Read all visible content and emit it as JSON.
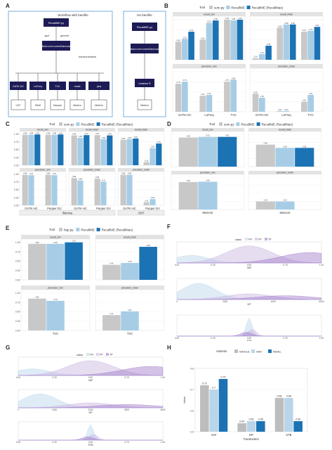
{
  "colors": {
    "som": "#c8c8c8",
    "recallme": "#a7cde6",
    "recallmax": "#1b73b4",
    "violet": "#a27bc9",
    "lightblue": "#b9d5ea",
    "navy": "#1d1b55",
    "strip": "#e3e3e3"
  },
  "panels": {
    "A": {
      "label": "A",
      "left_box": "Workflow with bamfile",
      "right_box": "No bamfile",
      "nodes": {
        "recallme": "RecallME.py",
        "bam2ref": "bcftools norm convert2annovar.pl",
        "harmonization": "harmonization",
        "gatk": "GATK-HC",
        "lofreq": "LoFreq",
        "tvc": "TVC",
        "reads": "reads",
        "plus": "plus",
        "recallme2": "RecallME.py",
        "bcftools2": "bcftools norm convert2annovar.pl",
        "recallmef": "recallme R",
        "metrics": "Metrics",
        "vcf": "VCF",
        "bam": "BAM",
        "sample": "Sample"
      },
      "edges": {
        "gvcf": "gvcf",
        "genovcf": "genovcf"
      }
    },
    "B": {
      "label": "B",
      "legend_title": "Tool",
      "legend": [
        "som.py",
        "RecallME",
        "RecallME (RecallMax)"
      ]
    },
    "C": {
      "label": "C",
      "legend_title": "Tool",
      "legend": [
        "som.py",
        "RecallME",
        "RecallME (RecallMax)"
      ],
      "groups": [
        "Illumina",
        "ONT"
      ]
    },
    "D": {
      "label": "D",
      "legend_title": "Tool",
      "legend": [
        "som.py",
        "RecallME",
        "RecallME (RecallMax)"
      ]
    },
    "E": {
      "label": "E",
      "legend_title": "Tool",
      "legend": [
        "hap.py",
        "RecallME",
        "RecallME (RecallMax)"
      ]
    },
    "F": {
      "label": "F",
      "legend_title": "class"
    },
    "G": {
      "label": "G",
      "legend_title": "class"
    },
    "H": {
      "label": "H",
      "legend_title": "Variants"
    }
  },
  "chart_data": [
    {
      "panel": "B",
      "type": "bar",
      "facets": [
        "recall_snv",
        "recall_indel",
        "precision_snv",
        "precision_indel"
      ],
      "categories": [
        "GATK-HC",
        "LoFreq",
        "TVC"
      ],
      "series": [
        {
          "name": "som.py",
          "values": [
            [
              0.45,
              0.5,
              1.0
            ],
            [
              0.04,
              0.8,
              0.7
            ],
            [
              0.7,
              0.4,
              0.75
            ],
            [
              0.45,
              0.02,
              0.25
            ]
          ]
        },
        {
          "name": "RecallME",
          "values": [
            [
              0.52,
              0.92,
              0.98
            ],
            [
              0.14,
              0.88,
              0.72
            ],
            [
              0.75,
              0.42,
              0.8
            ],
            [
              0.35,
              0.02,
              0.42
            ]
          ]
        },
        {
          "name": "RecallME (RecallMax)",
          "values": [
            [
              0.7,
              0.98,
              1.0
            ],
            [
              0.35,
              0.88,
              0.82
            ],
            [
              null,
              null,
              null
            ],
            [
              null,
              null,
              null
            ]
          ]
        }
      ],
      "ylim": [
        0,
        1
      ]
    },
    {
      "panel": "C",
      "type": "bar",
      "facets": [
        "recall_snv",
        "recall_indel",
        "recall_indel",
        "precision_snv",
        "precision_indel",
        "precision_indel"
      ],
      "categories": [
        "GATK-HC",
        "Pepper DV"
      ],
      "series": [
        {
          "name": "som.py",
          "values": [
            [
              0.98,
              0.98
            ],
            [
              0.96,
              0.97
            ],
            [
              0.82,
              0.1
            ],
            [
              0.98,
              0.98
            ],
            [
              0.88,
              0.86
            ],
            [
              0.98,
              0.1
            ]
          ]
        },
        {
          "name": "RecallME",
          "values": [
            [
              0.98,
              0.98
            ],
            [
              0.88,
              0.84
            ],
            [
              0.84,
              0.55
            ],
            [
              0.97,
              0.97
            ],
            [
              0.8,
              0.76
            ],
            [
              0.98,
              0.2
            ]
          ]
        },
        {
          "name": "RecallME (RecallMax)",
          "values": [
            [
              0.99,
              0.99
            ],
            [
              0.97,
              0.96
            ],
            [
              0.86,
              0.7
            ],
            [
              null,
              null
            ],
            [
              null,
              null
            ],
            [
              null,
              null
            ]
          ]
        }
      ],
      "ylim": [
        0,
        1
      ],
      "yticks": [
        "0.00",
        "0.25",
        "0.50",
        "0.75",
        "1.00"
      ]
    },
    {
      "panel": "D",
      "type": "bar",
      "facets": [
        "recall_snv",
        "recall_indel",
        "precision_snv",
        "precision_indel"
      ],
      "categories": [
        "Mutect2"
      ],
      "series": [
        {
          "name": "som.py",
          "values": [
            [
              0.9
            ],
            [
              0.68
            ],
            [
              0.85
            ],
            [
              0.25
            ]
          ]
        },
        {
          "name": "RecallME",
          "values": [
            [
              0.92
            ],
            [
              0.58
            ],
            [
              0.86
            ],
            [
              0.25
            ]
          ]
        },
        {
          "name": "RecallME (RecallMax)",
          "values": [
            [
              0.92
            ],
            [
              0.58
            ],
            [
              null
            ],
            [
              null
            ]
          ]
        }
      ],
      "xlabel": "Mutect2",
      "ylim": [
        0,
        1
      ]
    },
    {
      "panel": "E",
      "type": "bar",
      "facets": [
        "recall_snv",
        "recall_indel",
        "precision_snv",
        "precision_indel"
      ],
      "categories": [
        "TVC"
      ],
      "series": [
        {
          "name": "hap.py",
          "values": [
            [
              0.96
            ],
            [
              0.4
            ],
            [
              0.85
            ],
            [
              0.41
            ]
          ]
        },
        {
          "name": "RecallME",
          "values": [
            [
              0.96
            ],
            [
              0.45
            ],
            [
              0.79
            ],
            [
              0.51
            ]
          ]
        },
        {
          "name": "RecallME (RecallMax)",
          "values": [
            [
              1.0
            ],
            [
              0.88
            ],
            [
              null
            ],
            [
              null
            ]
          ]
        }
      ],
      "xlabel": "TVC",
      "ylim": [
        0,
        1
      ],
      "yticks": [
        "0.00",
        "0.25",
        "0.50",
        "0.75",
        "1.00"
      ]
    },
    {
      "panel": "F",
      "type": "area",
      "classes": [
        "FN",
        "FP",
        "TP"
      ],
      "subplots": [
        {
          "xlabel": "VAF",
          "xticks": [
            "0.00",
            "0.25",
            "0.50",
            "0.75",
            "1.00"
          ]
        },
        {
          "xlabel": "DP",
          "xticks": [
            "0",
            "2000",
            "4000",
            "6000"
          ]
        },
        {
          "xlabel": "STB",
          "xticks": [
            "0.00",
            "0.25",
            "0.50",
            "0.75",
            "1.00"
          ]
        }
      ]
    },
    {
      "panel": "G",
      "type": "area",
      "classes": [
        "FN",
        "FP",
        "TP"
      ],
      "subplots": [
        {
          "xlabel": "VAF",
          "xticks": [
            "0.00",
            "0.25",
            "0.50",
            "0.75",
            "1.00"
          ]
        },
        {
          "xlabel": "DP",
          "xticks": [
            "0",
            "1000",
            "2000",
            "3000",
            "4000"
          ]
        },
        {
          "xlabel": "STB",
          "xticks": [
            "0.00",
            "0.25",
            "0.50",
            "0.75",
            "1.00"
          ]
        }
      ]
    },
    {
      "panel": "H",
      "type": "bar",
      "categories": [
        "VAF",
        "DP",
        "STB"
      ],
      "series": [
        {
          "name": "WHOLE",
          "values": [
            0.72,
            0.54,
            0.66
          ]
        },
        {
          "name": "SNV",
          "values": [
            0.7,
            0.55,
            0.66
          ]
        },
        {
          "name": "INDEL",
          "values": [
            0.75,
            0.55,
            0.55
          ]
        }
      ],
      "data_labels": [
        [
          "0.72",
          "0.7",
          "0.75"
        ],
        [
          "0.54",
          "0.55",
          "0.55"
        ],
        [
          "0.66",
          "0.66",
          "0.55"
        ]
      ],
      "xlabel": "Parameters",
      "ylabel": "Value",
      "ylim": [
        0.5,
        0.8
      ],
      "yticks": [
        "0.5",
        "0.6",
        "0.7",
        "0.8"
      ]
    }
  ]
}
